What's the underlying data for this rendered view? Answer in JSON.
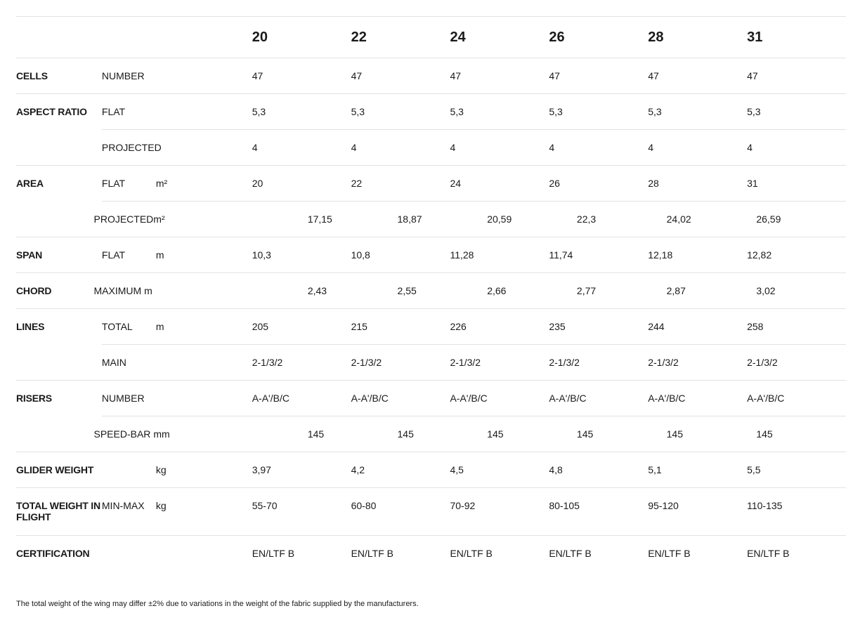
{
  "sizes": [
    "20",
    "22",
    "24",
    "26",
    "28",
    "31"
  ],
  "rows": [
    {
      "label": "CELLS",
      "sub": "NUMBER",
      "unit": "",
      "values": [
        "47",
        "47",
        "47",
        "47",
        "47",
        "47"
      ]
    },
    {
      "label": "ASPECT RATIO",
      "sub": "FLAT",
      "unit": "",
      "values": [
        "5,3",
        "5,3",
        "5,3",
        "5,3",
        "5,3",
        "5,3"
      ]
    },
    {
      "label": "",
      "sub": "PROJECTED",
      "unit": "",
      "values": [
        "4",
        "4",
        "4",
        "4",
        "4",
        "4"
      ],
      "cont": true
    },
    {
      "label": "AREA",
      "sub": "FLAT",
      "unit": "m²",
      "values": [
        "20",
        "22",
        "24",
        "26",
        "28",
        "31"
      ]
    },
    {
      "label": "",
      "sub": "PROJECTED",
      "unit": "m²",
      "values": [
        "17,15",
        "18,87",
        "20,59",
        "22,3",
        "24,02",
        "26,59"
      ],
      "cont": true,
      "glue": true
    },
    {
      "label": "SPAN",
      "sub": "FLAT",
      "unit": "m",
      "values": [
        "10,3",
        "10,8",
        "11,28",
        "11,74",
        "12,18",
        "12,82"
      ]
    },
    {
      "label": "CHORD",
      "sub": "MAXIMUM",
      "unit": "m",
      "values": [
        "2,43",
        "2,55",
        "2,66",
        "2,77",
        "2,87",
        "3,02"
      ],
      "glue": true
    },
    {
      "label": "LINES",
      "sub": "TOTAL",
      "unit": "m",
      "values": [
        "205",
        "215",
        "226",
        "235",
        "244",
        "258"
      ]
    },
    {
      "label": "",
      "sub": "MAIN",
      "unit": "",
      "values": [
        "2-1/3/2",
        "2-1/3/2",
        "2-1/3/2",
        "2-1/3/2",
        "2-1/3/2",
        "2-1/3/2"
      ],
      "cont": true
    },
    {
      "label": "RISERS",
      "sub": "NUMBER",
      "unit": "",
      "values": [
        "A-A'/B/C",
        "A-A'/B/C",
        "A-A'/B/C",
        "A-A'/B/C",
        "A-A'/B/C",
        "A-A'/B/C"
      ]
    },
    {
      "label": "",
      "sub": "SPEED-BAR",
      "unit": "mm",
      "values": [
        "145",
        "145",
        "145",
        "145",
        "145",
        "145"
      ],
      "cont": true,
      "glue": true
    },
    {
      "label": "GLIDER WEIGHT",
      "sub": "",
      "unit": "kg",
      "values": [
        "3,97",
        "4,2",
        "4,5",
        "4,8",
        "5,1",
        "5,5"
      ]
    },
    {
      "label": "TOTAL WEIGHT IN FLIGHT",
      "sub": "MIN-MAX",
      "unit": "kg",
      "values": [
        "55-70",
        "60-80",
        "70-92",
        "80-105",
        "95-120",
        "110-135"
      ],
      "tall": true
    },
    {
      "label": "CERTIFICATION",
      "sub": "",
      "unit": "",
      "values": [
        "EN/LTF B",
        "EN/LTF B",
        "EN/LTF B",
        "EN/LTF B",
        "EN/LTF B",
        "EN/LTF B"
      ]
    }
  ],
  "footnote": "The total weight of the wing may differ ±2% due to variations in the weight of the fabric supplied by the manufacturers."
}
